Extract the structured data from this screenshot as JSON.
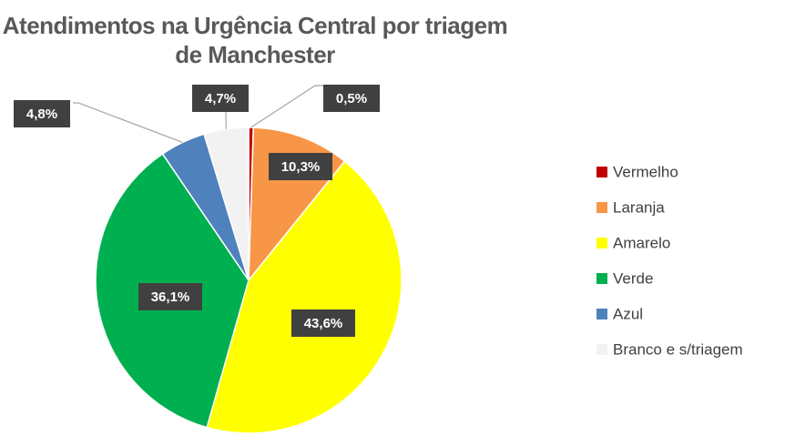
{
  "chart_data": {
    "type": "pie",
    "title": "Atendimentos na Urgência Central por triagem de Manchester",
    "categories": [
      "Vermelho",
      "Laranja",
      "Amarelo",
      "Verde",
      "Azul",
      "Branco e s/triagem"
    ],
    "values": [
      0.5,
      10.3,
      43.6,
      36.1,
      4.8,
      4.7
    ],
    "value_labels": [
      "0,5%",
      "10,3%",
      "43,6%",
      "36,1%",
      "4,8%",
      "4,7%"
    ],
    "colors": [
      "#c00000",
      "#f79646",
      "#ffff00",
      "#00b050",
      "#4f81bd",
      "#f2f2f2"
    ],
    "legend": "right"
  }
}
